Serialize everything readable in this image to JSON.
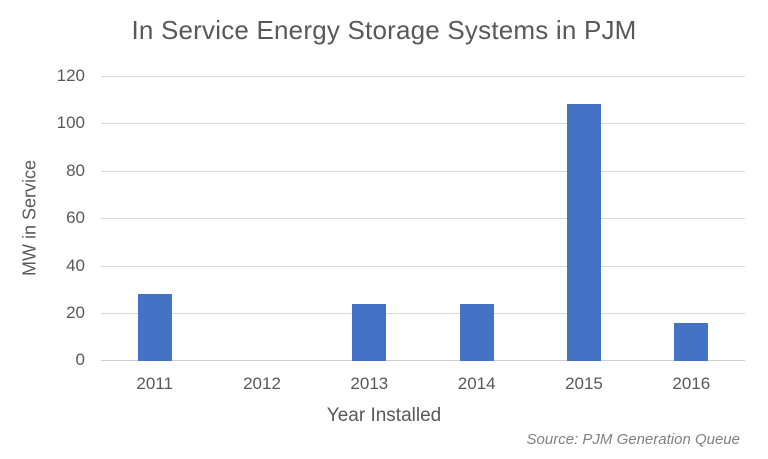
{
  "title": "In Service Energy Storage Systems in PJM",
  "source_note": "Source: PJM Generation Queue",
  "colors": {
    "bar": "#4472C4",
    "gridline": "#D9D9D9",
    "title_text": "#595959",
    "axis_text": "#595959",
    "source_text": "#808080",
    "background": "#FFFFFF"
  },
  "chart_data": {
    "type": "bar",
    "title": "In Service Energy Storage Systems in PJM",
    "categories": [
      "2011",
      "2012",
      "2013",
      "2014",
      "2015",
      "2016"
    ],
    "values": [
      28,
      0,
      24,
      24,
      108,
      16
    ],
    "xlabel": "Year Installed",
    "ylabel": "MW in Service",
    "ylim": [
      0,
      120
    ],
    "yticks": [
      0,
      20,
      40,
      60,
      80,
      100,
      120
    ],
    "grid": true,
    "legend": false,
    "annotations": [
      "Source: PJM Generation Queue"
    ]
  }
}
